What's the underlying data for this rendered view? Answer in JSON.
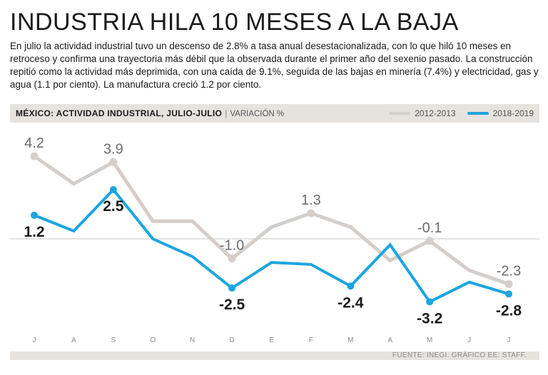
{
  "title": "INDUSTRIA HILA 10 MESES A LA BAJA",
  "intro": "En julio la actividad industrial tuvo un descenso de 2.8% a tasa anual desestacionalizada, con lo que hiló 10 meses en retroceso y confirma una trayectoria más débil que la observada durante el primer año del sexenio pasado. La construcción repitió como la actividad más deprimida, con una caída de 9.1%, seguida de las bajas en minería (7.4%) y electricidad, gas y agua (1.1 por ciento). La manufactura creció 1.2 por ciento.",
  "source": "FUENTE: INEGI. GRÁFICO EE: STAFF.",
  "chart_data": {
    "type": "line",
    "title": "MÉXICO: ACTIVIDAD INDUSTRIAL, JULIO-JULIO",
    "subtitle": "VARIACIÓN %",
    "categories": [
      "J",
      "A",
      "S",
      "O",
      "N",
      "D",
      "E",
      "F",
      "M",
      "A",
      "M",
      "J",
      "J"
    ],
    "ylim": [
      -4.6,
      5.4
    ],
    "zero_line": true,
    "legend_position": "top-right",
    "series": [
      {
        "name": "2012-2013",
        "color": "#d4ceca",
        "values": [
          4.2,
          2.8,
          3.9,
          0.9,
          0.9,
          -1.0,
          0.6,
          1.3,
          0.6,
          -1.1,
          -0.1,
          -1.6,
          -2.3
        ],
        "labels": [
          "4.2",
          null,
          "3.9",
          null,
          null,
          "-1.0",
          null,
          "1.3",
          null,
          null,
          "-0.1",
          null,
          "-2.3"
        ]
      },
      {
        "name": "2018-2019",
        "color": "#1ca5e0",
        "values": [
          1.2,
          0.4,
          2.5,
          0.0,
          -0.9,
          -2.5,
          -1.2,
          -1.3,
          -2.4,
          -0.3,
          -3.2,
          -2.2,
          -2.8
        ],
        "labels": [
          "1.2",
          null,
          "2.5",
          null,
          null,
          "-2.5",
          null,
          null,
          "-2.4",
          null,
          "-3.2",
          null,
          "-2.8"
        ]
      }
    ]
  }
}
